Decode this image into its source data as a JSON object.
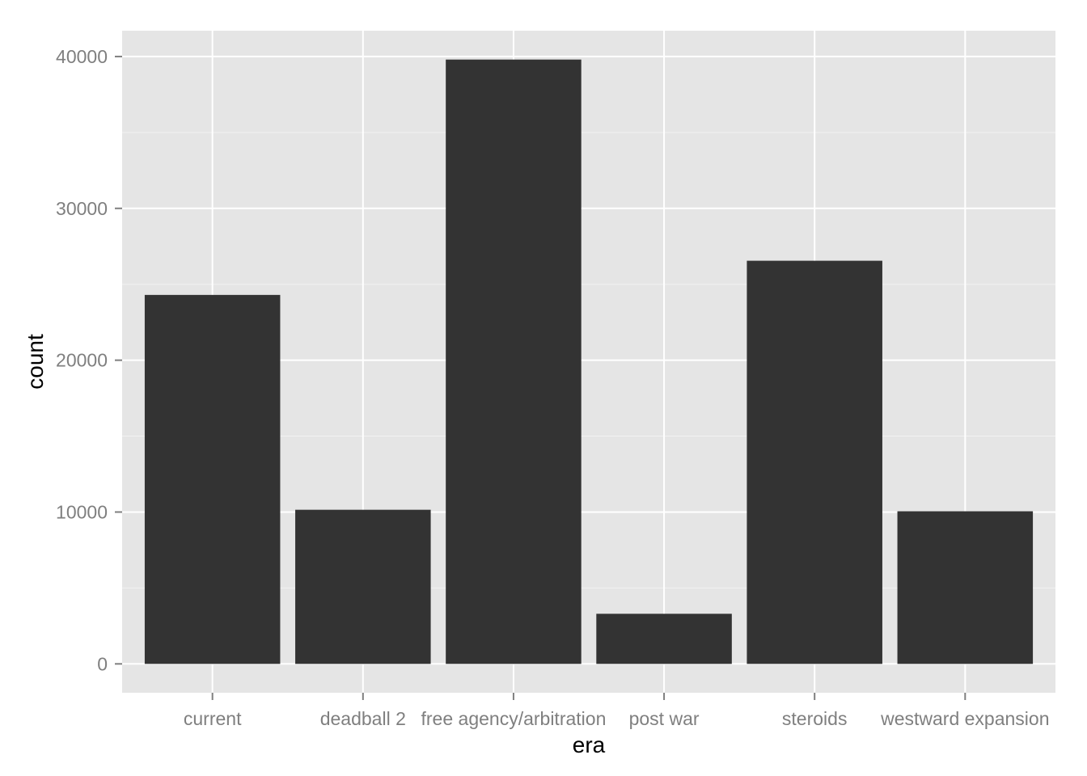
{
  "chart_data": {
    "type": "bar",
    "title": "",
    "xlabel": "era",
    "ylabel": "count",
    "categories": [
      "current",
      "deadball 2",
      "free agency/arbitration",
      "post war",
      "steroids",
      "westward expansion"
    ],
    "values": [
      24300,
      10150,
      39800,
      3300,
      26550,
      10050
    ],
    "ylim": [
      -1900,
      41700
    ],
    "yticks": [
      0,
      10000,
      20000,
      30000,
      40000
    ],
    "ytick_labels": [
      "0",
      "10000",
      "20000",
      "30000",
      "40000"
    ],
    "grid": true,
    "legend": "none",
    "colors": {
      "panel_background": "#e5e5e5",
      "grid_major": "#ffffff",
      "grid_minor": "#f2f2f2",
      "bar_fill": "#333333",
      "tick_label": "#7f7f7f",
      "axis_title": "#000000"
    }
  }
}
